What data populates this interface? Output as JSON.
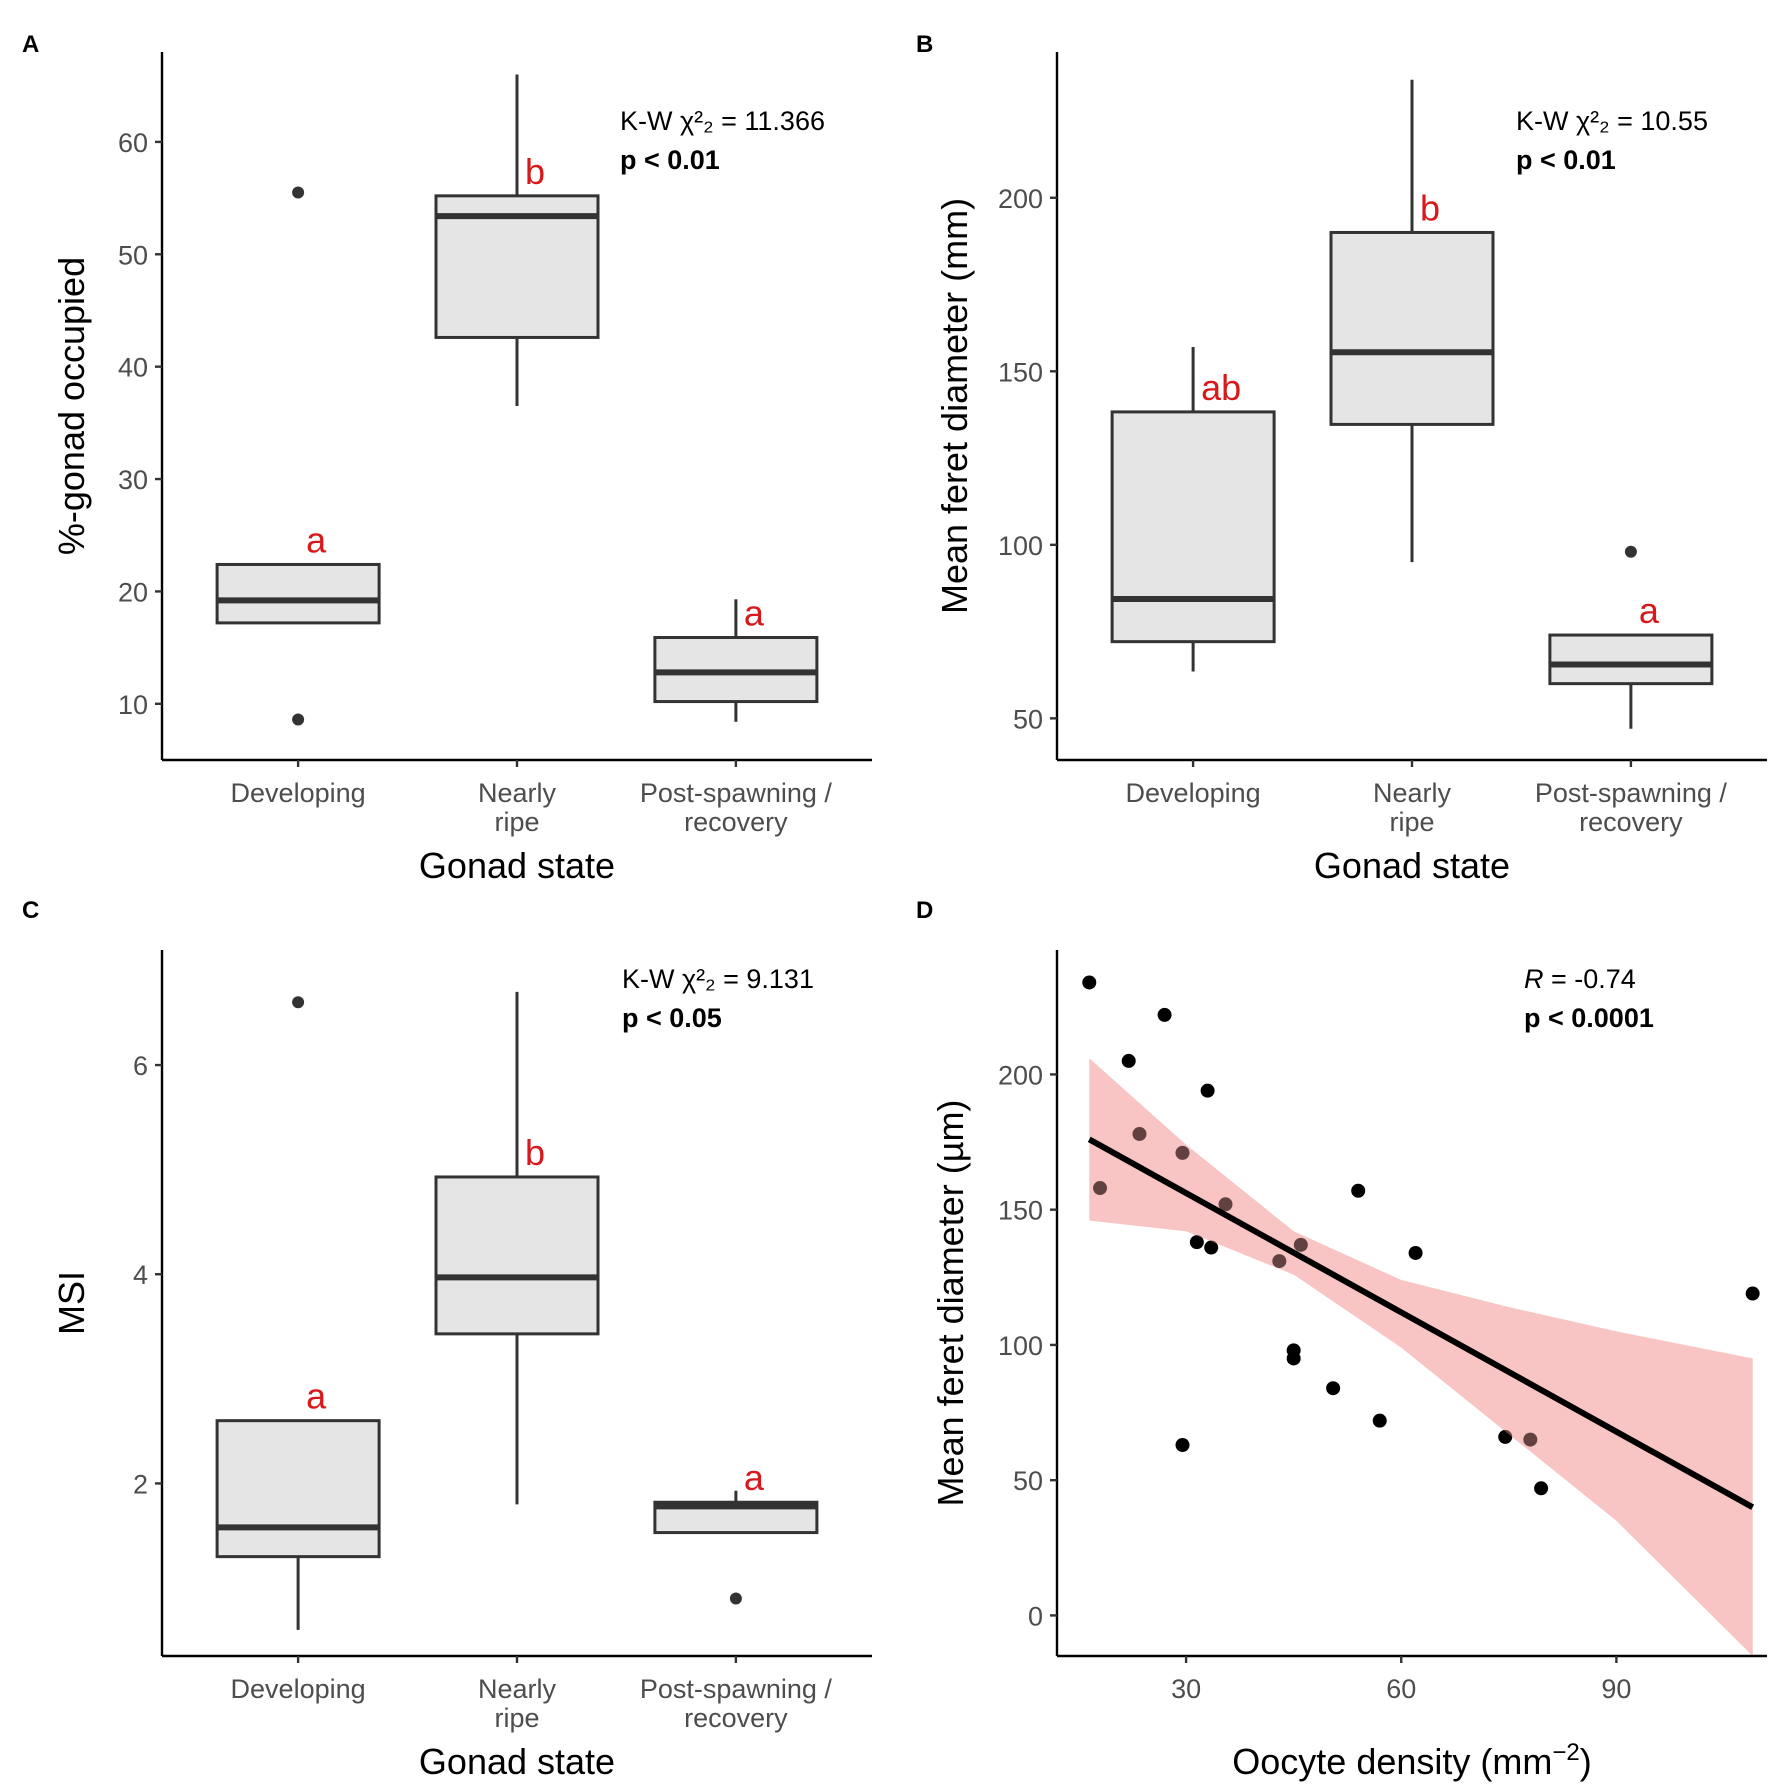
{
  "chart_data": [
    {
      "panel": "A",
      "type": "box",
      "xlabel": "Gonad state",
      "ylabel": "%-gonad occupied",
      "ylim": [
        5,
        68
      ],
      "yticks": [
        10,
        20,
        30,
        40,
        50,
        60
      ],
      "stat_line1": "K-W χ²₂ = 11.366",
      "stat_line2": "p < 0.01",
      "categories": [
        {
          "label1": "Developing",
          "label2": "",
          "whisker_low": 17.2,
          "q1": 17.2,
          "median": 19.2,
          "q3": 22.4,
          "whisker_high": 22.4,
          "outliers": [
            55.5,
            8.6
          ],
          "letter": "a"
        },
        {
          "label1": "Nearly",
          "label2": "ripe",
          "whisker_low": 36.5,
          "q1": 42.6,
          "median": 53.4,
          "q3": 55.2,
          "whisker_high": 66.0,
          "outliers": [],
          "letter": "b"
        },
        {
          "label1": "Post-spawning /",
          "label2": "recovery",
          "whisker_low": 8.4,
          "q1": 10.2,
          "median": 12.8,
          "q3": 15.9,
          "whisker_high": 19.3,
          "outliers": [],
          "letter": "a"
        }
      ]
    },
    {
      "panel": "B",
      "type": "box",
      "xlabel": "Gonad state",
      "ylabel": "Mean feret diameter (mm)",
      "ylim": [
        38,
        242
      ],
      "yticks": [
        50,
        100,
        150,
        200
      ],
      "stat_line1": "K-W χ²₂ = 10.55",
      "stat_line2": "p < 0.01",
      "categories": [
        {
          "label1": "Developing",
          "label2": "",
          "whisker_low": 63.5,
          "q1": 72.1,
          "median": 84.4,
          "q3": 138.3,
          "whisker_high": 157.0,
          "outliers": [],
          "letter": "ab"
        },
        {
          "label1": "Nearly",
          "label2": "ripe",
          "whisker_low": 95.0,
          "q1": 134.7,
          "median": 155.5,
          "q3": 190.0,
          "whisker_high": 234.0,
          "outliers": [],
          "letter": "b"
        },
        {
          "label1": "Post-spawning /",
          "label2": "recovery",
          "whisker_low": 47.0,
          "q1": 60.0,
          "median": 65.5,
          "q3": 74.0,
          "whisker_high": 74.0,
          "outliers": [
            98.0
          ],
          "letter": "a"
        }
      ]
    },
    {
      "panel": "C",
      "type": "box",
      "xlabel": "Gonad state",
      "ylabel": "MSI",
      "ylim": [
        0.35,
        7.1
      ],
      "yticks": [
        2,
        4,
        6
      ],
      "stat_line1": "K-W χ²₂ = 9.131",
      "stat_line2": "p < 0.05",
      "categories": [
        {
          "label1": "Developing",
          "label2": "",
          "whisker_low": 0.6,
          "q1": 1.3,
          "median": 1.58,
          "q3": 2.6,
          "whisker_high": 2.6,
          "outliers": [
            6.6
          ],
          "letter": "a"
        },
        {
          "label1": "Nearly",
          "label2": "ripe",
          "whisker_low": 1.8,
          "q1": 3.43,
          "median": 3.97,
          "q3": 4.93,
          "whisker_high": 6.7,
          "outliers": [],
          "letter": "b"
        },
        {
          "label1": "Post-spawning /",
          "label2": "recovery",
          "whisker_low": 1.53,
          "q1": 1.53,
          "median": 1.78,
          "q3": 1.82,
          "whisker_high": 1.93,
          "outliers": [
            0.9
          ],
          "letter": "a"
        }
      ]
    },
    {
      "panel": "D",
      "type": "scatter",
      "xlabel": "Oocyte density (mm",
      "xlabel_sup": "−2",
      "xlabel_end": ")",
      "ylabel": "Mean feret diameter (µm)",
      "xlim": [
        12,
        111
      ],
      "ylim": [
        -15,
        246
      ],
      "xticks": [
        30,
        60,
        90
      ],
      "yticks": [
        0,
        50,
        100,
        150,
        200
      ],
      "stat_r_label": "R",
      "stat_r_value": " = -0.74",
      "stat_line2": "p < 0.0001",
      "points": [
        [
          16.5,
          234
        ],
        [
          18,
          158
        ],
        [
          22,
          205
        ],
        [
          23.5,
          178
        ],
        [
          27,
          222
        ],
        [
          29.5,
          171
        ],
        [
          29.5,
          63
        ],
        [
          31.5,
          138
        ],
        [
          33,
          194
        ],
        [
          33.5,
          136
        ],
        [
          35.5,
          152
        ],
        [
          43,
          131
        ],
        [
          45,
          98
        ],
        [
          45,
          95
        ],
        [
          46,
          137
        ],
        [
          50.5,
          84
        ],
        [
          54,
          157
        ],
        [
          57,
          72
        ],
        [
          62,
          134
        ],
        [
          74.5,
          66
        ],
        [
          78,
          65
        ],
        [
          79.5,
          47
        ],
        [
          109,
          119
        ]
      ],
      "fit": {
        "x0": 16.5,
        "y0": 176,
        "x1": 109,
        "y1": 40
      },
      "band": {
        "x": [
          16.5,
          30,
          45,
          60,
          75,
          90,
          109
        ],
        "lower": [
          146,
          142,
          126,
          99,
          67,
          35,
          -15
        ],
        "upper": [
          206,
          174,
          142,
          124,
          114,
          105,
          95
        ]
      }
    }
  ]
}
